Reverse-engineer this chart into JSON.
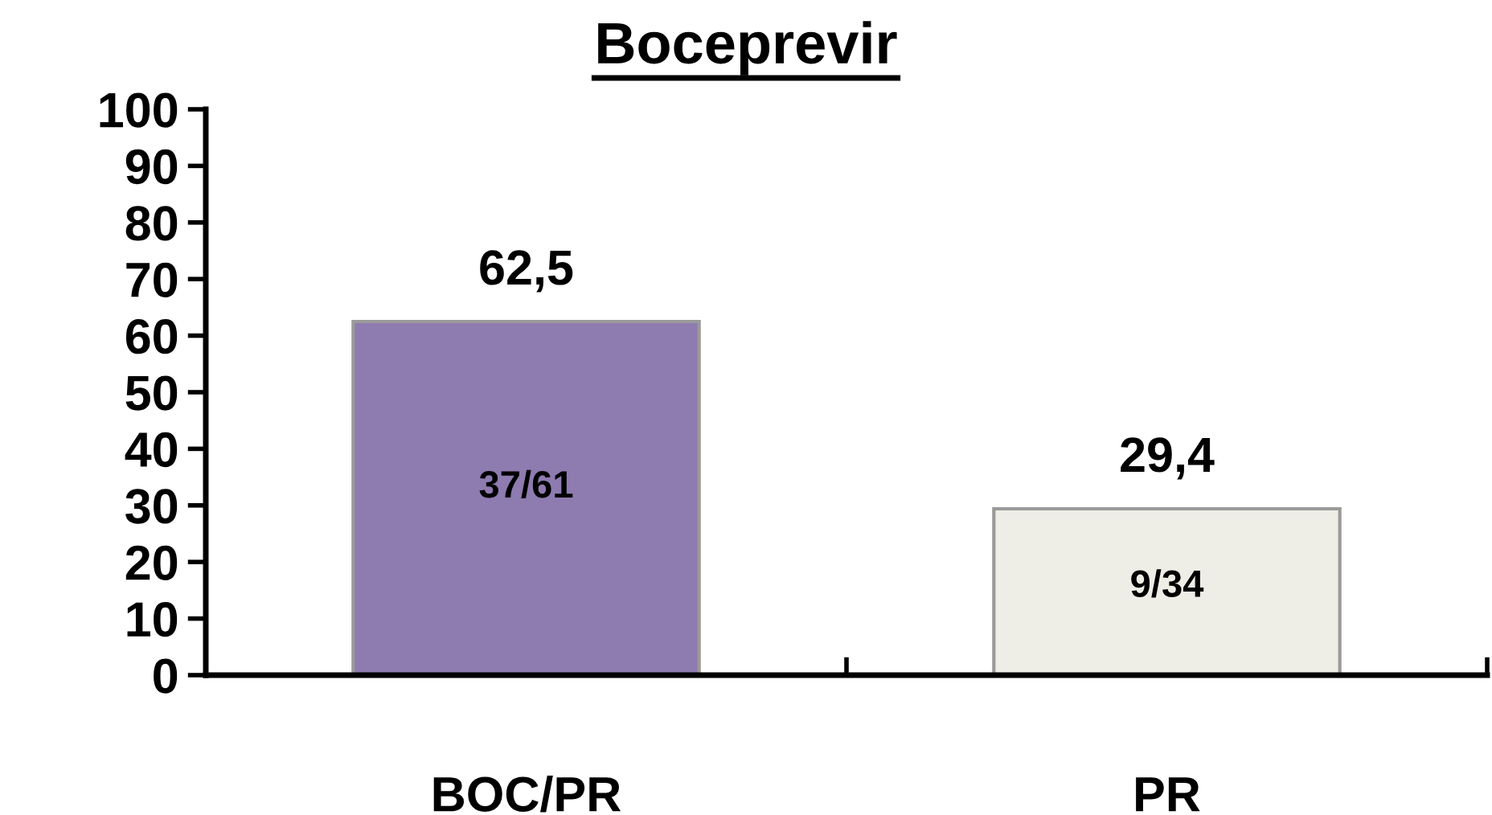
{
  "chart_data": {
    "type": "bar",
    "title": "Boceprevir",
    "categories": [
      "BOC/PR",
      "PR"
    ],
    "values": [
      62.5,
      29.4
    ],
    "colors": [
      "#8e7bb0",
      "#eeede6"
    ],
    "value_labels": [
      "62,5",
      "29,4"
    ],
    "annotations": [
      "37/61",
      "9/34"
    ],
    "ylim": [
      0,
      100
    ],
    "yticks": [
      0,
      10,
      20,
      30,
      40,
      50,
      60,
      70,
      80,
      90,
      100
    ],
    "grid": false,
    "legend": false
  }
}
